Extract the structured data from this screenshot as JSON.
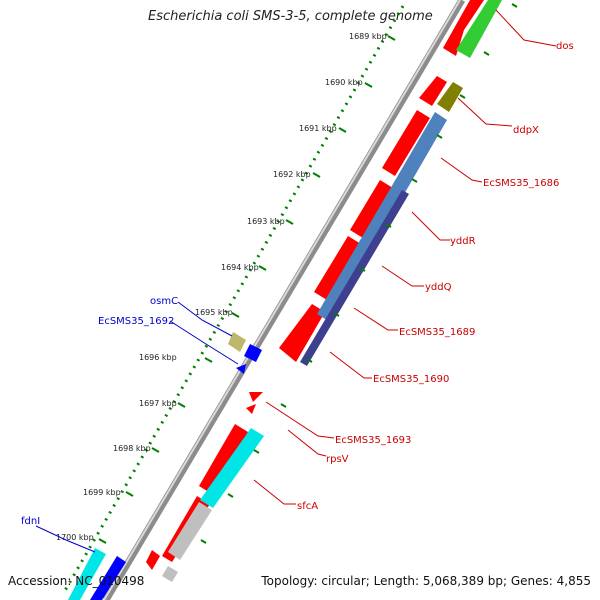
{
  "title": "Escherichia coli SMS-3-5, complete genome",
  "footer": {
    "accession": "Accession: NC_010498",
    "topology": "Topology: circular; Length: 5,068,389 bp; Genes: 4,855"
  },
  "ticks": [
    "1689 kbp",
    "1690 kbp",
    "1691 kbp",
    "1692 kbp",
    "1693 kbp",
    "1694 kbp",
    "1695 kbp",
    "1696 kbp",
    "1697 kbp",
    "1698 kbp",
    "1699 kbp",
    "1700 kbp"
  ],
  "gene_labels": {
    "right": [
      "dos",
      "ddpX",
      "EcSMS35_1686",
      "yddR",
      "yddQ",
      "EcSMS35_1689",
      "EcSMS35_1690",
      "EcSMS35_1693",
      "rpsV",
      "sfcA"
    ],
    "left": [
      "osmC",
      "EcSMS35_1692",
      "fdnI"
    ]
  },
  "colors": {
    "forward_label": "#cc0000",
    "reverse_label": "#0000cc",
    "cds": "#ff0000",
    "track_blue": "#4f81bd",
    "track_navy": "#3f3f8f",
    "track_green": "#33cc33",
    "track_olive": "#808000",
    "track_cyan": "#00e5e5",
    "track_gray": "#bfbfbf",
    "reverse_gene": "#0000ff",
    "reverse_khaki": "#bdb76b",
    "tick": "#008000",
    "backbone": "#8c8c8c"
  }
}
